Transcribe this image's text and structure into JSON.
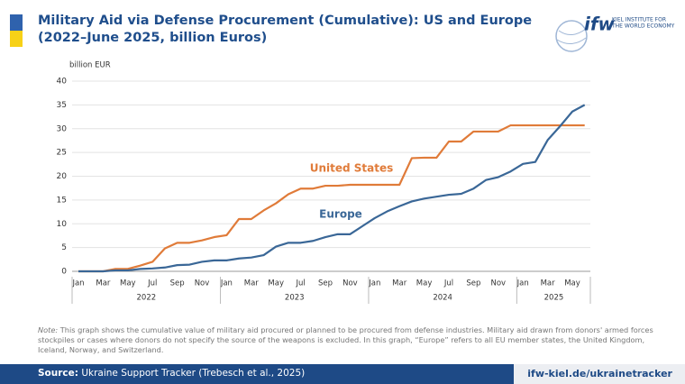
{
  "chart_data": {
    "type": "line",
    "title": [
      "Military Aid via Defense Procurement (Cumulative): US and Europe",
      "(2022–June 2025, billion Euros)"
    ],
    "y_label": "billion EUR",
    "categories": [
      "Jan",
      null,
      "Mar",
      null,
      "May",
      null,
      "Jul",
      null,
      "Sep",
      null,
      "Nov",
      null,
      "Jan",
      null,
      "Mar",
      null,
      "May",
      null,
      "Jul",
      null,
      "Sep",
      null,
      "Nov",
      null,
      "Jan",
      null,
      "Mar",
      null,
      "May",
      null,
      "Jul",
      null,
      "Sep",
      null,
      "Nov",
      null,
      "Jan",
      null,
      "Mar",
      null,
      "May",
      null
    ],
    "years": [
      "2022",
      "2023",
      "2024",
      "2025"
    ],
    "series": [
      {
        "name": "United States",
        "color": "#e07b39",
        "values": [
          0,
          0,
          0,
          0.5,
          0.5,
          1.2,
          2,
          4.8,
          6,
          6,
          6.5,
          7.2,
          7.6,
          11,
          11,
          12.8,
          14.3,
          16.2,
          17.4,
          17.4,
          18,
          18,
          18.2,
          18.2,
          18.2,
          18.2,
          18.2,
          23.8,
          23.9,
          23.9,
          27.3,
          27.3,
          29.4,
          29.4,
          29.4,
          30.7,
          30.7,
          30.7,
          30.7,
          30.7,
          30.7,
          30.7
        ]
      },
      {
        "name": "Europe",
        "color": "#3a6797",
        "values": [
          0,
          0,
          0,
          0.2,
          0.2,
          0.5,
          0.6,
          0.8,
          1.3,
          1.4,
          2,
          2.3,
          2.3,
          2.7,
          2.9,
          3.4,
          5.2,
          6,
          6,
          6.4,
          7.2,
          7.8,
          7.8,
          9.5,
          11.2,
          12.6,
          13.7,
          14.7,
          15.3,
          15.7,
          16.1,
          16.3,
          17.4,
          19.2,
          19.8,
          21,
          22.6,
          23,
          27.6,
          30.5,
          33.6,
          35
        ]
      }
    ],
    "ylim": [
      0,
      40
    ],
    "yticks": [
      0,
      5,
      10,
      15,
      20,
      25,
      30,
      35,
      40
    ],
    "grid": true,
    "note_label": "Note:",
    "note": "This graph shows the cumulative value of military aid procured or planned to be procured from defense industries. Military aid drawn from donors' armed forces stockpiles or cases where donors do not specify the source of the weapons is excluded. In this graph, “Europe” refers to all EU member states, the United Kingdom, Iceland, Norway, and Switzerland.",
    "source_label": "Source:",
    "source": "Ukraine Support Tracker (Trebesch et al., 2025)",
    "url": "ifw-kiel.de/ukrainetracker",
    "logo": "ifw",
    "logo_text": [
      "KIEL INSTITUTE FOR",
      "THE WORLD ECONOMY"
    ]
  }
}
